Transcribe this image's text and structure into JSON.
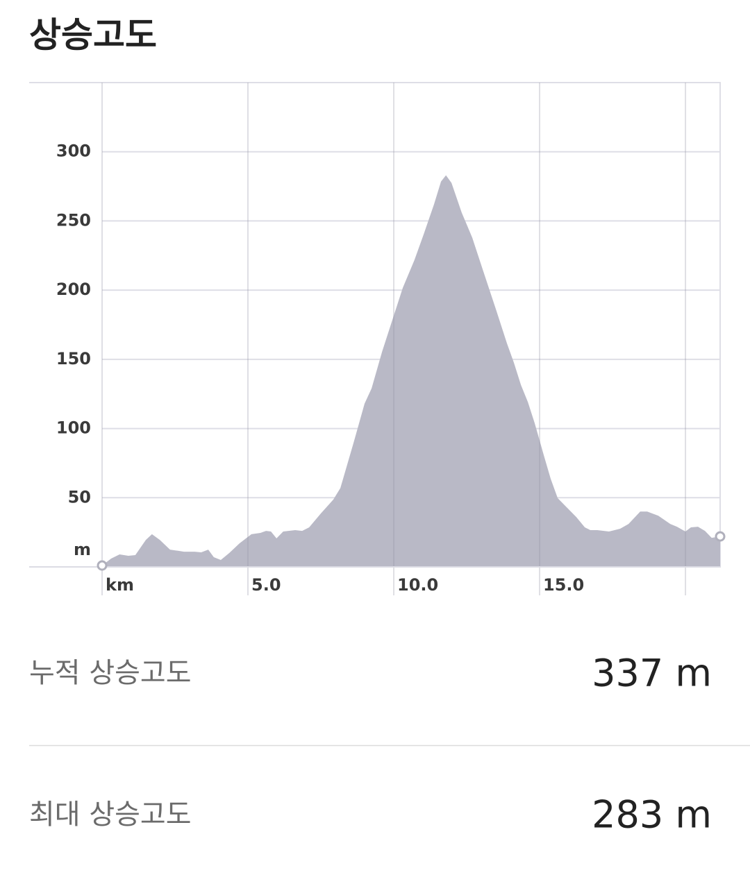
{
  "header": {
    "title": "상승고도"
  },
  "chart_data": {
    "type": "area",
    "color": "#b9b9c6",
    "grid": true,
    "x": [
      0,
      0.31,
      0.6,
      0.9,
      1.14,
      1.5,
      1.71,
      1.98,
      2.33,
      2.81,
      3.17,
      3.4,
      3.64,
      3.83,
      4.07,
      4.36,
      4.71,
      5.12,
      5.43,
      5.62,
      5.79,
      5.98,
      6.21,
      6.62,
      6.86,
      7.1,
      7.5,
      7.93,
      8.17,
      8.64,
      9.0,
      9.24,
      9.6,
      10.0,
      10.31,
      10.71,
      11.02,
      11.38,
      11.62,
      11.79,
      11.98,
      12.33,
      12.69,
      13.1,
      13.52,
      13.88,
      14.12,
      14.36,
      14.6,
      14.83,
      15.14,
      15.38,
      15.62,
      15.9,
      16.26,
      16.55,
      16.74,
      16.98,
      17.38,
      17.76,
      18.05,
      18.45,
      18.69,
      19.07,
      19.48,
      19.71,
      20.0,
      20.19,
      20.43,
      20.67,
      20.9,
      21.19
    ],
    "values": [
      1,
      6,
      9,
      8,
      8.5,
      19.5,
      23.6,
      19.5,
      12.5,
      11,
      11,
      10.5,
      12.5,
      7,
      5,
      10,
      17,
      23.6,
      24.6,
      26,
      25.6,
      20.6,
      25.6,
      26.6,
      26,
      28.6,
      38.6,
      48.7,
      57,
      91,
      118,
      129,
      155.5,
      181.6,
      201.7,
      221.8,
      240,
      262,
      278.5,
      283,
      277.5,
      256,
      238,
      211.7,
      185,
      161.6,
      147.5,
      131.5,
      119,
      104,
      81,
      63.7,
      49.7,
      43.7,
      36,
      28.6,
      26.6,
      26.6,
      25.6,
      27.6,
      31,
      40,
      40,
      37,
      31,
      29,
      25.6,
      28.6,
      29,
      26,
      21,
      22
    ],
    "xlim": [
      0,
      21.19
    ],
    "ylim": [
      0,
      350
    ],
    "xticks": [
      {
        "value": 0,
        "label": "km"
      },
      {
        "value": 5,
        "label": "5.0"
      },
      {
        "value": 10,
        "label": "10.0"
      },
      {
        "value": 15,
        "label": "15.0"
      },
      {
        "value": 20,
        "label": null
      }
    ],
    "yticks": [
      {
        "value": 0,
        "label": "m"
      },
      50,
      100,
      150,
      200,
      250,
      300
    ]
  },
  "stats": [
    {
      "label": "누적 상승고도",
      "value": "337 m"
    },
    {
      "label": "최대 상승고도",
      "value": "283 m"
    }
  ]
}
